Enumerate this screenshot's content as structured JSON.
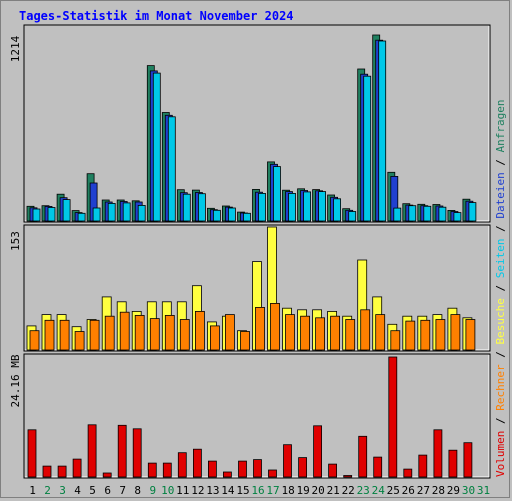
{
  "chart_data": {
    "type": "bar",
    "title": "Tages-Statistik im Monat November 2024",
    "days": [
      "1",
      "2",
      "3",
      "4",
      "5",
      "6",
      "7",
      "8",
      "9",
      "10",
      "11",
      "12",
      "13",
      "14",
      "15",
      "16",
      "17",
      "18",
      "19",
      "20",
      "21",
      "22",
      "23",
      "24",
      "25",
      "26",
      "27",
      "28",
      "29",
      "30",
      "31"
    ],
    "weekend_days": [
      "2",
      "3",
      "9",
      "10",
      "16",
      "17",
      "23",
      "24",
      "30",
      "31"
    ],
    "colors": {
      "weekday_label": "#000000",
      "weekend_label": "#008040",
      "anfragen": "#208060",
      "dateien": "#2040d0",
      "seiten": "#00c8e8",
      "besuche": "#ffff40",
      "rechner": "#ff8000",
      "volumen": "#e00000",
      "separator": "#000000"
    },
    "panels": [
      {
        "name": "top",
        "ymax_label": "1214",
        "ymax": 1214,
        "series": [
          {
            "name": "Anfragen",
            "values": [
              96,
              100,
              175,
              68,
              309,
              137,
              137,
              132,
              1014,
              708,
              204,
              202,
              83,
              98,
              58,
              206,
              386,
              201,
              210,
              205,
              170,
              80,
              992,
              1214,
              318,
              113,
              109,
              108,
              69,
              142,
              0
            ]
          },
          {
            "name": "Dateien",
            "values": [
              86,
              95,
              152,
              55,
              248,
              124,
              127,
              124,
              980,
              690,
              185,
              186,
              74,
              91,
              52,
              188,
              370,
              192,
              199,
              197,
              155,
              70,
              958,
              1180,
              291,
              104,
              100,
              98,
              62,
              129,
              0
            ]
          },
          {
            "name": "Seiten",
            "values": [
              78,
              88,
              140,
              50,
              85,
              115,
              118,
              102,
              965,
              680,
              175,
              178,
              70,
              85,
              50,
              180,
              355,
              180,
              190,
              192,
              145,
              62,
              945,
              1175,
              84,
              100,
              96,
              90,
              55,
              120,
              0
            ]
          }
        ]
      },
      {
        "name": "middle",
        "ymax_label": "153",
        "ymax": 153,
        "series": [
          {
            "name": "Besuche",
            "values": [
              30,
              44,
              44,
              29,
              38,
              66,
              60,
              48,
              60,
              60,
              60,
              80,
              35,
              42,
              24,
              110,
              153,
              52,
              50,
              50,
              48,
              42,
              112,
              66,
              32,
              42,
              42,
              44,
              52,
              40,
              0
            ]
          },
          {
            "name": "Rechner",
            "values": [
              24,
              37,
              37,
              23,
              37,
              42,
              47,
              43,
              39,
              43,
              38,
              48,
              30,
              44,
              23,
              53,
              58,
              44,
              42,
              40,
              42,
              38,
              50,
              44,
              24,
              36,
              37,
              38,
              44,
              38,
              0
            ]
          }
        ]
      },
      {
        "name": "bottom",
        "ymax_label": "24.16 MB",
        "ymax": 24.16,
        "series": [
          {
            "name": "Volumen",
            "values": [
              9.5,
              2.2,
              2.2,
              3.6,
              10.5,
              0.8,
              10.4,
              9.7,
              2.8,
              2.8,
              4.9,
              5.6,
              3.2,
              1.0,
              3.2,
              3.5,
              1.4,
              6.5,
              3.9,
              10.3,
              2.6,
              0.3,
              8.2,
              4.0,
              24.16,
              1.6,
              4.4,
              9.5,
              5.4,
              6.9,
              0
            ]
          }
        ]
      }
    ],
    "legend": {
      "items": [
        {
          "label": "Volumen",
          "color": "#e00000"
        },
        {
          "label": " / ",
          "color": "#000000"
        },
        {
          "label": "Rechner",
          "color": "#ff8000"
        },
        {
          "label": " / ",
          "color": "#000000"
        },
        {
          "label": "Besuche",
          "color": "#ffff40"
        },
        {
          "label": " / ",
          "color": "#000000"
        },
        {
          "label": "Seiten",
          "color": "#00c8e8"
        },
        {
          "label": " / ",
          "color": "#000000"
        },
        {
          "label": "Dateien",
          "color": "#2040d0"
        },
        {
          "label": " / ",
          "color": "#000000"
        },
        {
          "label": "Anfragen",
          "color": "#208060"
        }
      ]
    }
  }
}
